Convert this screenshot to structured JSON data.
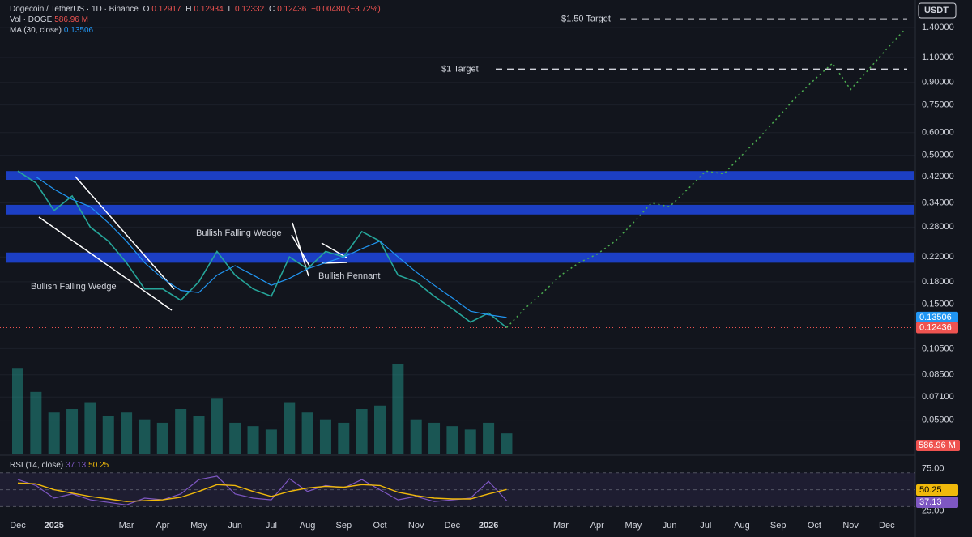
{
  "chart_data": {
    "type": "line",
    "header": {
      "ohlc": [
        {
          "label": "O",
          "value": 0.12917
        },
        {
          "label": "H",
          "value": 0.12934
        },
        {
          "label": "L",
          "value": 0.12332
        }
      ],
      "close_label": "C",
      "change": "−0.00480 (−3.72%)",
      "quote": "USDT"
    },
    "categories": [
      "Dec",
      null,
      "2025",
      null,
      null,
      null,
      "Mar",
      null,
      "Apr",
      null,
      "May",
      null,
      "Jun",
      null,
      "Jul",
      null,
      "Aug",
      null,
      "Sep",
      null,
      "Oct",
      null,
      "Nov",
      null,
      "Dec",
      null,
      "2026",
      null,
      null,
      null,
      "Mar",
      null,
      "Apr",
      null,
      "May",
      null,
      "Jun",
      null,
      "Jul",
      null,
      "Aug",
      null,
      "Sep",
      null,
      "Oct",
      null,
      "Nov",
      null,
      "Dec",
      null
    ],
    "log_scale": true,
    "grid": true,
    "ylim": [
      0.045,
      1.75
    ],
    "yticks": [
      {
        "value": 1.4,
        "label": "1.40000"
      },
      {
        "value": 1.1,
        "label": "1.10000"
      },
      {
        "value": 0.9,
        "label": "0.90000"
      },
      {
        "value": 0.75,
        "label": "0.75000"
      },
      {
        "value": 0.6,
        "label": "0.60000"
      },
      {
        "value": 0.5,
        "label": "0.50000"
      },
      {
        "value": 0.42,
        "label": "0.42000"
      },
      {
        "value": 0.34,
        "label": "0.34000"
      },
      {
        "value": 0.28,
        "label": "0.28000"
      },
      {
        "value": 0.22,
        "label": "0.22000"
      },
      {
        "value": 0.18,
        "label": "0.18000"
      },
      {
        "value": 0.15,
        "label": "0.15000"
      },
      {
        "value": 0.105,
        "label": "0.10500"
      },
      {
        "value": 0.085,
        "label": "0.08500"
      },
      {
        "value": 0.071,
        "label": "0.07100"
      },
      {
        "value": 0.059,
        "label": "0.05900"
      }
    ],
    "series": [
      {
        "name": "Dogecoin / TetherUS · 1D · Binance",
        "color": "#26a69a",
        "values": [
          0.44,
          0.4,
          0.32,
          0.36,
          0.28,
          0.25,
          0.21,
          0.17,
          0.17,
          0.155,
          0.18,
          0.23,
          0.19,
          0.17,
          0.16,
          0.22,
          0.2,
          0.23,
          0.22,
          0.27,
          0.25,
          0.19,
          0.18,
          0.16,
          0.145,
          0.13,
          0.14,
          0.12436,
          null,
          null,
          null,
          null,
          null,
          null,
          null,
          null,
          null,
          null,
          null,
          null,
          null,
          null,
          null,
          null,
          null,
          null,
          null,
          null,
          null,
          null
        ]
      },
      {
        "name": "MA (30, close)",
        "color": "#2196f3",
        "values": [
          null,
          0.42,
          0.38,
          0.35,
          0.33,
          0.29,
          0.25,
          0.21,
          0.185,
          0.168,
          0.165,
          0.19,
          0.205,
          0.19,
          0.175,
          0.185,
          0.2,
          0.21,
          0.22,
          0.235,
          0.25,
          0.22,
          0.195,
          0.175,
          0.158,
          0.142,
          0.138,
          0.13506,
          null,
          null,
          null,
          null,
          null,
          null,
          null,
          null,
          null,
          null,
          null,
          null,
          null,
          null,
          null,
          null,
          null,
          null,
          null,
          null,
          null,
          null
        ]
      },
      {
        "color": "#4caf50",
        "values": [
          null,
          null,
          null,
          null,
          null,
          null,
          null,
          null,
          null,
          null,
          null,
          null,
          null,
          null,
          null,
          null,
          null,
          null,
          null,
          null,
          null,
          null,
          null,
          null,
          null,
          null,
          null,
          0.12436,
          0.145,
          0.165,
          0.19,
          0.21,
          0.225,
          0.25,
          0.29,
          0.34,
          0.33,
          0.38,
          0.44,
          0.43,
          0.5,
          0.58,
          0.68,
          0.8,
          0.92,
          1.05,
          0.85,
          1.0,
          1.18,
          1.38
        ]
      }
    ],
    "volume": {
      "name": "Vol · DOGE",
      "label": "586.96 M",
      "color": "#26a69a",
      "values": [
        2500,
        1800,
        1200,
        1300,
        1500,
        1100,
        1200,
        1000,
        900,
        1300,
        1100,
        1600,
        900,
        800,
        700,
        1500,
        1200,
        1000,
        900,
        1300,
        1400,
        2600,
        1000,
        900,
        800,
        700,
        900,
        586.96,
        null,
        null,
        null,
        null,
        null,
        null,
        null,
        null,
        null,
        null,
        null,
        null,
        null,
        null,
        null,
        null,
        null,
        null,
        null,
        null,
        null,
        null
      ]
    },
    "zones": [
      {
        "low": 0.41,
        "high": 0.44
      },
      {
        "low": 0.31,
        "high": 0.335
      },
      {
        "low": 0.21,
        "high": 0.228
      }
    ],
    "zone_color": "#1c3fc4",
    "targets": [
      {
        "label": "$1.50 Target",
        "value": 1.5
      },
      {
        "label": "$1 Target",
        "value": 1.0
      }
    ],
    "annotations": [
      "Bullish Falling Wedge",
      "Bullish Falling Wedge",
      "Bullish Pennant"
    ],
    "rsi": {
      "name": "RSI (14, close)",
      "color": "#7e57c2",
      "ma_color": "#f0b90b",
      "values": [
        62,
        55,
        40,
        45,
        38,
        35,
        32,
        40,
        38,
        45,
        62,
        66,
        45,
        40,
        38,
        63,
        48,
        55,
        52,
        62,
        50,
        38,
        42,
        36,
        38,
        40,
        60,
        37.13,
        null,
        null,
        null,
        null,
        null,
        null,
        null,
        null,
        null,
        null,
        null,
        null,
        null,
        null,
        null,
        null,
        null,
        null,
        null,
        null,
        null,
        null
      ],
      "ma_values": [
        58,
        57,
        50,
        46,
        42,
        39,
        36,
        37,
        38,
        41,
        48,
        56,
        55,
        48,
        42,
        48,
        52,
        54,
        53,
        56,
        55,
        47,
        43,
        40,
        39,
        39,
        45,
        50.25,
        null,
        null,
        null,
        null,
        null,
        null,
        null,
        null,
        null,
        null,
        null,
        null,
        null,
        null,
        null,
        null,
        null,
        null,
        null,
        null,
        null,
        null
      ],
      "ylim": [
        16,
        88
      ],
      "yticks": [
        {
          "value": 75,
          "label": "75.00"
        },
        {
          "value": 25,
          "label": "25.00"
        }
      ],
      "levels": [
        70,
        50,
        30
      ]
    }
  }
}
